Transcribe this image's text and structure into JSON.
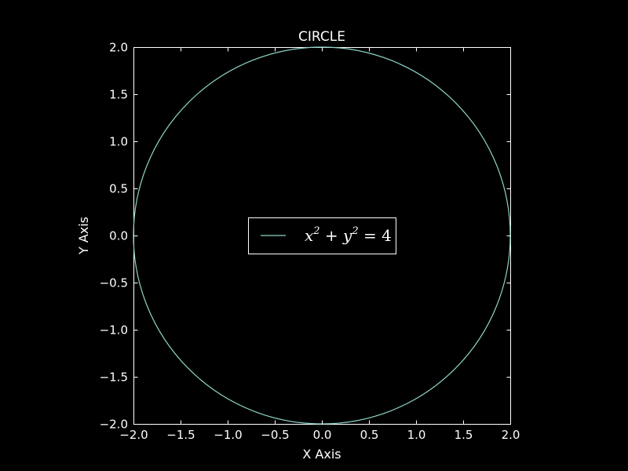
{
  "chart_data": {
    "type": "line",
    "title": "CIRCLE",
    "xlabel": "X Axis",
    "ylabel": "Y Axis",
    "xlim": [
      -2.0,
      2.0
    ],
    "ylim": [
      -2.0,
      2.0
    ],
    "xticks": [
      "−2.0",
      "−1.5",
      "−1.0",
      "−0.5",
      "0.0",
      "0.5",
      "1.0",
      "1.5",
      "2.0"
    ],
    "yticks": [
      "−2.0",
      "−1.5",
      "−1.0",
      "−0.5",
      "0.0",
      "0.5",
      "1.0",
      "1.5",
      "2.0"
    ],
    "grid": false,
    "legend_position": "center",
    "series": [
      {
        "name": "x^2 + y^2 = 4",
        "equation": "x^2 + y^2 = 4",
        "radius": 2,
        "center": [
          0,
          0
        ],
        "color": "#8dd3c7"
      }
    ]
  },
  "colors": {
    "background": "#000000",
    "foreground": "#ffffff",
    "series": "#8dd3c7"
  }
}
